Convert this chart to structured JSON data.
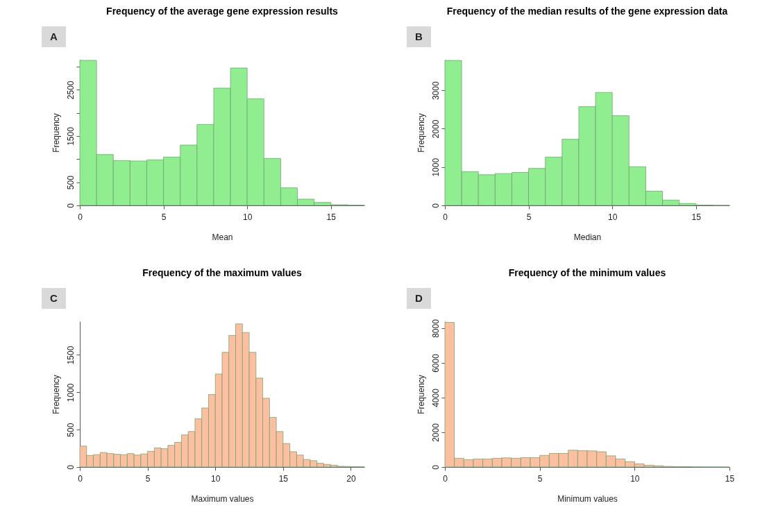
{
  "chart_data": [
    {
      "type": "histogram",
      "title": "Frequency of the average gene expression results",
      "xlabel": "Mean",
      "ylabel": "Frequency",
      "annotations": [
        "A"
      ],
      "color": "#90ee90",
      "bins": [
        0,
        1,
        2,
        3,
        4,
        5,
        6,
        7,
        8,
        9,
        10,
        11,
        12,
        13,
        14,
        15,
        16,
        17
      ],
      "values": [
        3135,
        1100,
        970,
        960,
        985,
        1045,
        1305,
        1750,
        2535,
        2970,
        2305,
        1015,
        380,
        135,
        65,
        15,
        5
      ],
      "xlim": [
        0,
        17
      ],
      "xticks": [
        0,
        5,
        10,
        15
      ],
      "ylim": [
        0,
        3150
      ],
      "yticks": [
        0,
        500,
        {
          "value": 1000,
          "label": null
        },
        1500,
        {
          "value": 2000,
          "label": null
        },
        2500,
        {
          "value": 3000,
          "label": null
        }
      ]
    },
    {
      "type": "histogram",
      "title": "Frequency of the median results of the gene expression data",
      "xlabel": "Median",
      "ylabel": "Frequency",
      "annotations": [
        "B"
      ],
      "color": "#90ee90",
      "bins": [
        0,
        1,
        2,
        3,
        4,
        5,
        6,
        7,
        8,
        9,
        10,
        11,
        12,
        13,
        14,
        15,
        16,
        17
      ],
      "values": [
        3780,
        880,
        800,
        830,
        860,
        965,
        1260,
        1725,
        2575,
        2945,
        2340,
        1010,
        370,
        140,
        50,
        10,
        3
      ],
      "xlim": [
        0,
        17
      ],
      "xticks": [
        0,
        5,
        10,
        15
      ],
      "ylim": [
        0,
        3800
      ],
      "yticks": [
        0,
        1000,
        2000,
        3000
      ]
    },
    {
      "type": "histogram",
      "title": "Frequency of the maximum values",
      "xlabel": "Maximum values",
      "ylabel": "Frequency",
      "annotations": [
        "C"
      ],
      "color": "#fcc0a0",
      "bins": [
        0,
        0.5,
        1,
        1.5,
        2,
        2.5,
        3,
        3.5,
        4,
        4.5,
        5,
        5.5,
        6,
        6.5,
        7,
        7.5,
        8,
        8.5,
        9,
        9.5,
        10,
        10.5,
        11,
        11.5,
        12,
        12.5,
        13,
        13.5,
        14,
        14.5,
        15,
        15.5,
        16,
        16.5,
        17,
        17.5,
        18,
        18.5,
        19,
        19.5,
        20,
        20.5,
        21
      ],
      "values": [
        280,
        155,
        165,
        195,
        180,
        170,
        165,
        180,
        160,
        175,
        210,
        255,
        245,
        290,
        330,
        430,
        475,
        645,
        790,
        970,
        1245,
        1535,
        1760,
        1915,
        1800,
        1535,
        1190,
        920,
        665,
        475,
        315,
        205,
        160,
        100,
        85,
        50,
        35,
        25,
        10,
        7,
        4,
        3
      ],
      "xlim": [
        0,
        21
      ],
      "xticks": [
        0,
        5,
        10,
        15,
        20
      ],
      "ylim": [
        0,
        1950
      ],
      "yticks": [
        0,
        500,
        1000,
        1500
      ]
    },
    {
      "type": "histogram",
      "title": "Frequency of the minimum values",
      "xlabel": "Minimum values",
      "ylabel": "Frequency",
      "annotations": [
        "D"
      ],
      "color": "#fcc0a0",
      "bins": [
        0,
        0.5,
        1,
        1.5,
        2,
        2.5,
        3,
        3.5,
        4,
        4.5,
        5,
        5.5,
        6,
        6.5,
        7,
        7.5,
        8,
        8.5,
        9,
        9.5,
        10,
        10.5,
        11,
        11.5,
        12,
        12.5,
        13,
        13.5,
        14,
        14.5,
        15
      ],
      "values": [
        8335,
        505,
        425,
        465,
        465,
        505,
        530,
        505,
        540,
        540,
        670,
        785,
        785,
        970,
        940,
        930,
        880,
        645,
        465,
        310,
        180,
        105,
        75,
        35,
        25,
        20,
        10,
        5,
        3,
        2
      ],
      "xlim": [
        0,
        15
      ],
      "xticks": [
        0,
        5,
        10,
        15
      ],
      "ylim": [
        0,
        8400
      ],
      "yticks": [
        0,
        2000,
        4000,
        6000,
        8000
      ]
    }
  ]
}
